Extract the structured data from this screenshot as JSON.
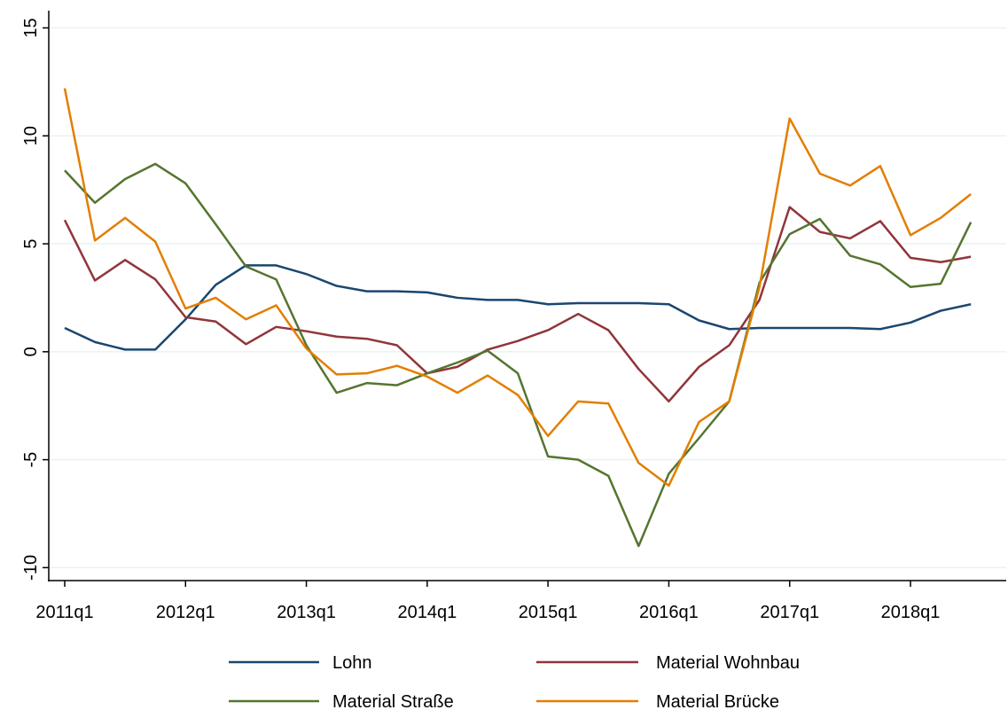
{
  "chart_data": {
    "type": "line",
    "categories": [
      "2011q1",
      null,
      null,
      null,
      "2012q1",
      null,
      null,
      null,
      "2013q1",
      null,
      null,
      null,
      "2014q1",
      null,
      null,
      null,
      "2015q1",
      null,
      null,
      null,
      "2016q1",
      null,
      null,
      null,
      "2017q1",
      null,
      null,
      null,
      "2018q1",
      null,
      null
    ],
    "series": [
      {
        "name": "Lohn",
        "color": "#1a476f",
        "values": [
          1.1,
          0.45,
          0.1,
          0.1,
          1.5,
          3.1,
          4.0,
          4.0,
          3.6,
          3.05,
          2.8,
          2.8,
          2.75,
          2.5,
          2.4,
          2.4,
          2.2,
          2.25,
          2.25,
          2.25,
          2.2,
          1.45,
          1.05,
          1.1,
          1.1,
          1.1,
          1.1,
          1.05,
          1.35,
          1.9,
          2.2
        ]
      },
      {
        "name": "Material Wohnbau",
        "color": "#90353b",
        "values": [
          6.1,
          3.3,
          4.25,
          3.35,
          1.6,
          1.4,
          0.35,
          1.15,
          0.95,
          0.7,
          0.6,
          0.3,
          -1.0,
          -0.7,
          0.1,
          0.5,
          1.0,
          1.75,
          1.0,
          -0.8,
          -2.3,
          -0.7,
          0.3,
          2.4,
          6.7,
          5.55,
          5.25,
          6.05,
          4.35,
          4.15,
          4.4
        ]
      },
      {
        "name": "Material Straße",
        "color": "#55752f",
        "values": [
          8.4,
          6.9,
          8.0,
          8.7,
          7.8,
          5.9,
          3.95,
          3.35,
          0.3,
          -1.9,
          -1.45,
          -1.55,
          -1.0,
          -0.5,
          0.05,
          -1.0,
          -4.85,
          -5.0,
          -5.75,
          -9.0,
          -5.65,
          -4.0,
          -2.3,
          3.2,
          5.45,
          6.15,
          4.45,
          4.05,
          3.0,
          3.15,
          6.0
        ]
      },
      {
        "name": "Material Brücke",
        "color": "#e37e00",
        "values": [
          12.2,
          5.15,
          6.2,
          5.1,
          2.0,
          2.5,
          1.5,
          2.15,
          0.15,
          -1.05,
          -1.0,
          -0.65,
          -1.15,
          -1.9,
          -1.1,
          -2.0,
          -3.9,
          -2.3,
          -2.4,
          -5.15,
          -6.2,
          -3.25,
          -2.3,
          3.0,
          10.8,
          8.25,
          7.7,
          8.6,
          5.4,
          6.2,
          7.3
        ]
      }
    ],
    "ylim": [
      -10.6,
      15.8
    ],
    "yticks": [
      -10,
      -5,
      0,
      5,
      10,
      15
    ],
    "grid": true
  }
}
